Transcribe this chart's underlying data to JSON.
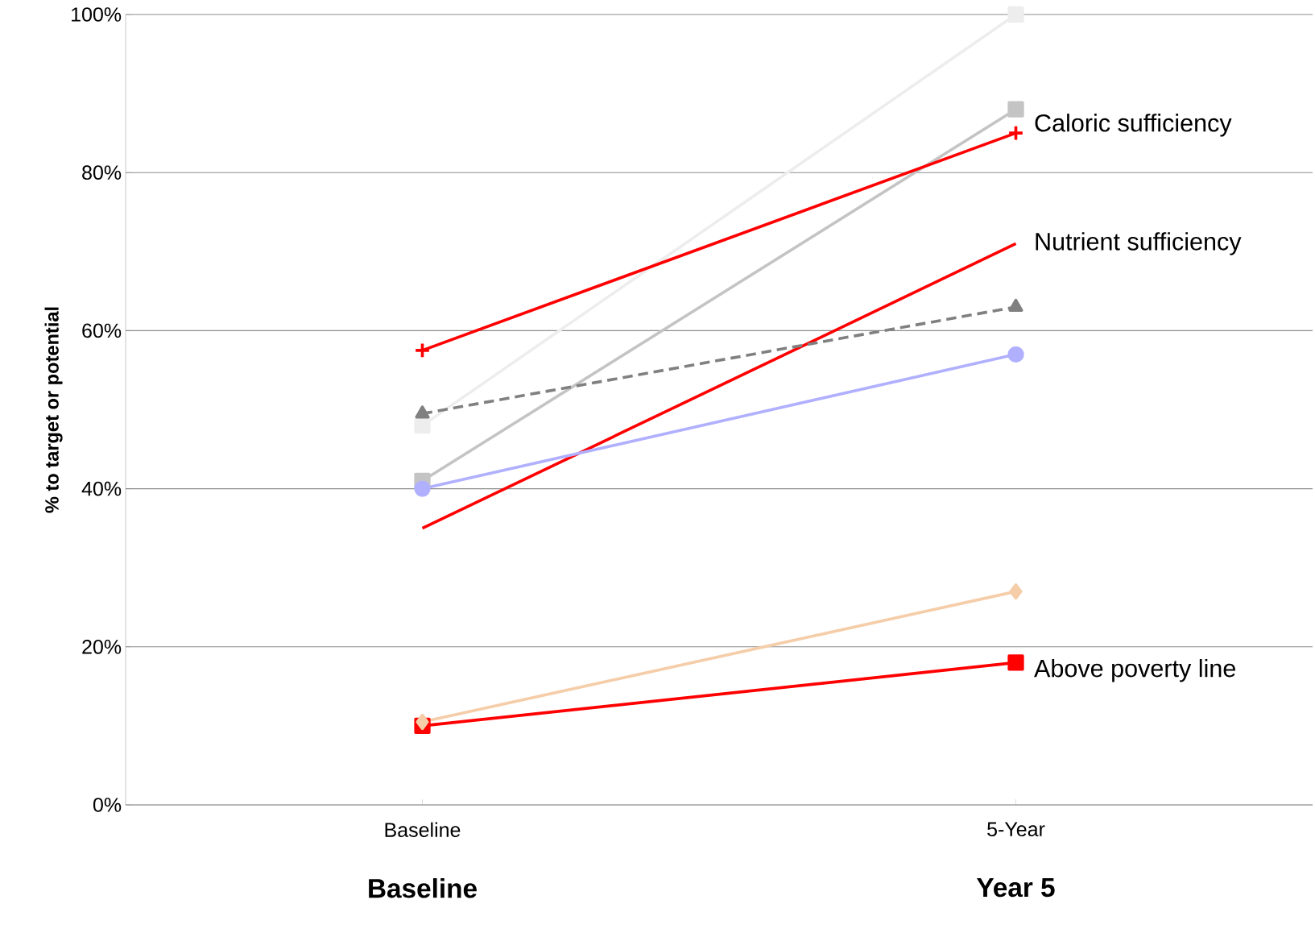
{
  "chart_data": {
    "type": "line",
    "ylabel": "% to target or potential",
    "categories": [
      "Baseline",
      "5-Year"
    ],
    "series": [
      {
        "color": "#ededed",
        "values": [
          48,
          100
        ],
        "marker": "square"
      },
      {
        "color": "#c4c4c4",
        "values": [
          41,
          88
        ],
        "marker": "square"
      },
      {
        "color": "#ff0000",
        "values": [
          57.5,
          85
        ],
        "marker": "cross"
      },
      {
        "color": "#ff0000",
        "values": [
          35,
          71
        ],
        "marker": "none"
      },
      {
        "color": "#808080",
        "values": [
          49.5,
          63
        ],
        "marker": "triangle",
        "line_style": "dashed"
      },
      {
        "color": "#b0b0ff",
        "values": [
          40,
          57
        ],
        "marker": "circle"
      },
      {
        "color": "#ff0000",
        "values": [
          10,
          18
        ],
        "marker": "square"
      },
      {
        "color": "#f5cda8",
        "values": [
          10.5,
          27
        ],
        "marker": "diamond"
      }
    ],
    "ylim": [
      0,
      100
    ],
    "yticks": [
      {
        "value": 0,
        "label": "0%"
      },
      {
        "value": 20,
        "label": "20%"
      },
      {
        "value": 40,
        "label": "40%"
      },
      {
        "value": 60,
        "label": "60%"
      },
      {
        "value": 80,
        "label": "80%"
      },
      {
        "value": 100,
        "label": "100%"
      }
    ],
    "grid": "y",
    "annotations": [
      {
        "text": "Caloric sufficiency",
        "x": "5-Year",
        "y": 86
      },
      {
        "text": "Nutrient sufficiency",
        "x": "5-Year",
        "y": 71
      },
      {
        "text": "Above poverty line",
        "x": "5-Year",
        "y": 17
      },
      "Baseline",
      "Year 5"
    ]
  }
}
